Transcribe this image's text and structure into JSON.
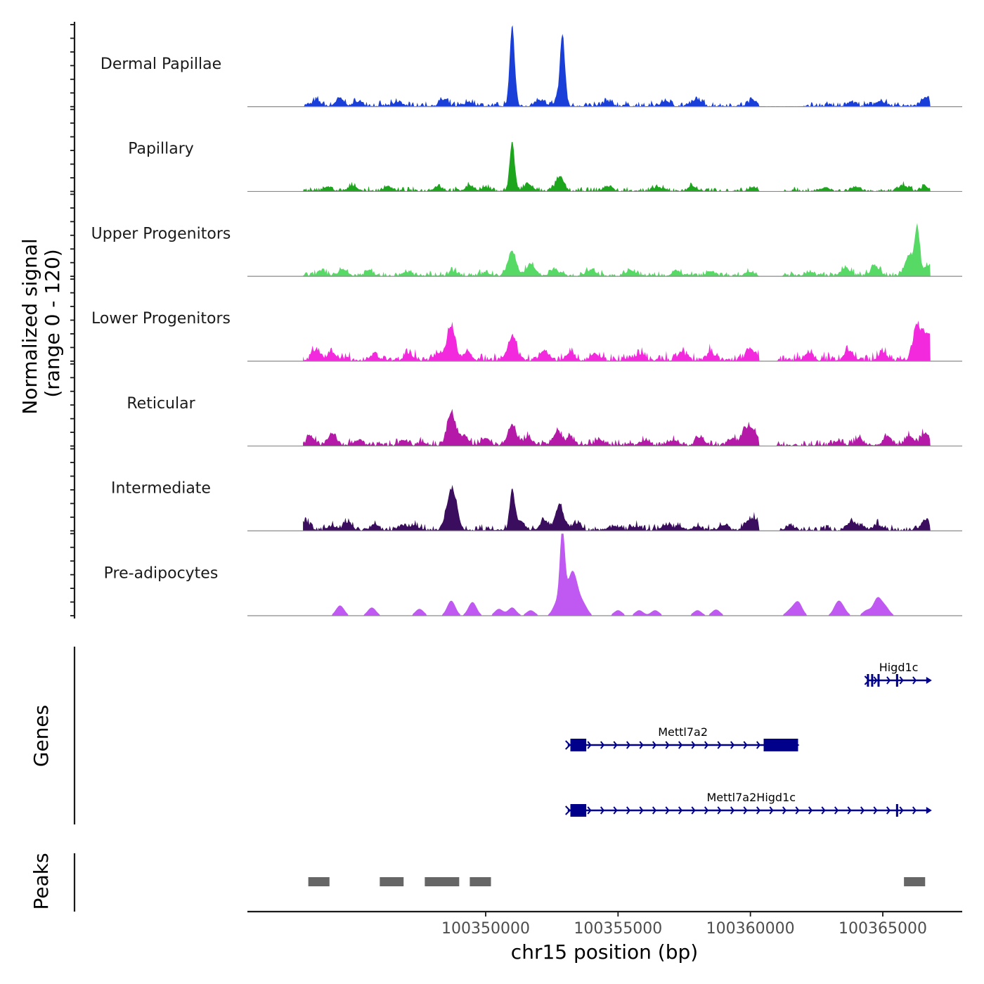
{
  "chart_data": {
    "type": "area",
    "title": "",
    "region": {
      "chromosome": "chr15",
      "start": 100341000,
      "end": 100368000
    },
    "coverage_panel": {
      "ylabel_line1": "Normalized signal",
      "ylabel_line2": "(range 0 - 120)",
      "ylim": [
        0,
        120
      ],
      "data_start": 100343100,
      "data_end": 100366800,
      "series": [
        {
          "name": "Dermal Papillae",
          "color": "#1a3fd9",
          "peaks": [
            [
              100343600,
              8
            ],
            [
              100344500,
              10
            ],
            [
              100345200,
              7
            ],
            [
              100346700,
              6
            ],
            [
              100348400,
              8
            ],
            [
              100349400,
              6
            ],
            [
              100351000,
              118
            ],
            [
              100352000,
              8
            ],
            [
              100352700,
              7
            ],
            [
              100352900,
              102
            ],
            [
              100354600,
              7
            ],
            [
              100356800,
              8
            ],
            [
              100358000,
              10
            ],
            [
              100360100,
              9
            ],
            [
              100363800,
              6
            ],
            [
              100364900,
              8
            ],
            [
              100366600,
              12
            ]
          ],
          "noise": 5,
          "gaps": [
            [
              100360300,
              100362000
            ]
          ]
        },
        {
          "name": "Papillary",
          "color": "#1ea51e",
          "peaks": [
            [
              100344000,
              6
            ],
            [
              100345000,
              8
            ],
            [
              100346300,
              7
            ],
            [
              100348200,
              7
            ],
            [
              100349400,
              8
            ],
            [
              100350000,
              5
            ],
            [
              100351000,
              72
            ],
            [
              100351600,
              10
            ],
            [
              100352800,
              20
            ],
            [
              100354600,
              7
            ],
            [
              100356500,
              6
            ],
            [
              100357800,
              7
            ],
            [
              100360100,
              6
            ],
            [
              100362800,
              5
            ],
            [
              100364000,
              6
            ],
            [
              100365800,
              8
            ],
            [
              100366600,
              6
            ]
          ],
          "noise": 4,
          "gaps": [
            [
              100360300,
              100361300
            ]
          ]
        },
        {
          "name": "Upper Progenitors",
          "color": "#57d965",
          "peaks": [
            [
              100343800,
              7
            ],
            [
              100344600,
              10
            ],
            [
              100345600,
              7
            ],
            [
              100347000,
              6
            ],
            [
              100348800,
              6
            ],
            [
              100350000,
              5
            ],
            [
              100351000,
              35
            ],
            [
              100351700,
              18
            ],
            [
              100352600,
              10
            ],
            [
              100354000,
              9
            ],
            [
              100355500,
              8
            ],
            [
              100357200,
              8
            ],
            [
              100358500,
              7
            ],
            [
              100360000,
              6
            ],
            [
              100362200,
              5
            ],
            [
              100363600,
              12
            ],
            [
              100364700,
              14
            ],
            [
              100366000,
              30
            ],
            [
              100366300,
              70
            ],
            [
              100366700,
              15
            ]
          ],
          "noise": 5,
          "gaps": [
            [
              100360300,
              100361200
            ]
          ]
        },
        {
          "name": "Lower Progenitors",
          "color": "#f229dd",
          "peaks": [
            [
              100343600,
              15
            ],
            [
              100344200,
              12
            ],
            [
              100345800,
              8
            ],
            [
              100347100,
              10
            ],
            [
              100348200,
              10
            ],
            [
              100348700,
              48
            ],
            [
              100349300,
              12
            ],
            [
              100351000,
              32
            ],
            [
              100352200,
              15
            ],
            [
              100353200,
              12
            ],
            [
              100354100,
              10
            ],
            [
              100355800,
              9
            ],
            [
              100357400,
              12
            ],
            [
              100358500,
              11
            ],
            [
              100360000,
              18
            ],
            [
              100362200,
              12
            ],
            [
              100363700,
              14
            ],
            [
              100365000,
              12
            ],
            [
              100366300,
              50
            ],
            [
              100366700,
              38
            ]
          ],
          "noise": 8,
          "gaps": [
            [
              100360300,
              100361000
            ]
          ]
        },
        {
          "name": "Reticular",
          "color": "#b519a8",
          "peaks": [
            [
              100343400,
              12
            ],
            [
              100344200,
              18
            ],
            [
              100345200,
              8
            ],
            [
              100346900,
              6
            ],
            [
              100347600,
              5
            ],
            [
              100348700,
              48
            ],
            [
              100349200,
              14
            ],
            [
              100350000,
              10
            ],
            [
              100351000,
              30
            ],
            [
              100351600,
              12
            ],
            [
              100352700,
              20
            ],
            [
              100353200,
              10
            ],
            [
              100354300,
              8
            ],
            [
              100356000,
              7
            ],
            [
              100357100,
              8
            ],
            [
              100358100,
              12
            ],
            [
              100359300,
              10
            ],
            [
              100359800,
              20
            ],
            [
              100360100,
              22
            ],
            [
              100363300,
              6
            ],
            [
              100364100,
              10
            ],
            [
              100365200,
              12
            ],
            [
              100366000,
              14
            ],
            [
              100366600,
              18
            ]
          ],
          "noise": 6,
          "gaps": [
            [
              100360300,
              100361000
            ]
          ]
        },
        {
          "name": "Intermediate",
          "color": "#3b0d5e",
          "peaks": [
            [
              100343200,
              12
            ],
            [
              100344200,
              6
            ],
            [
              100344800,
              12
            ],
            [
              100345800,
              8
            ],
            [
              100346800,
              6
            ],
            [
              100347300,
              8
            ],
            [
              100348600,
              30
            ],
            [
              100348800,
              42
            ],
            [
              100351000,
              60
            ],
            [
              100351300,
              14
            ],
            [
              100352200,
              14
            ],
            [
              100352800,
              35
            ],
            [
              100353400,
              10
            ],
            [
              100354900,
              6
            ],
            [
              100355700,
              6
            ],
            [
              100356800,
              8
            ],
            [
              100357300,
              6
            ],
            [
              100358000,
              6
            ],
            [
              100359000,
              8
            ],
            [
              100359900,
              12
            ],
            [
              100360200,
              14
            ],
            [
              100361500,
              7
            ],
            [
              100363800,
              12
            ],
            [
              100364200,
              6
            ],
            [
              100364800,
              8
            ],
            [
              100366600,
              15
            ]
          ],
          "noise": 6,
          "gaps": [
            [
              100360300,
              100361100
            ]
          ]
        },
        {
          "name": "Pre-adipocytes",
          "color": "#bf59f2",
          "peaks": [
            [
              100344500,
              15
            ],
            [
              100345700,
              12
            ],
            [
              100347500,
              10
            ],
            [
              100348700,
              22
            ],
            [
              100349500,
              20
            ],
            [
              100350500,
              10
            ],
            [
              100351000,
              12
            ],
            [
              100351700,
              8
            ],
            [
              100352700,
              20
            ],
            [
              100352900,
              118
            ],
            [
              100353200,
              45
            ],
            [
              100353400,
              35
            ],
            [
              100353700,
              15
            ],
            [
              100355000,
              8
            ],
            [
              100355800,
              8
            ],
            [
              100356400,
              8
            ],
            [
              100358000,
              8
            ],
            [
              100358700,
              9
            ],
            [
              100361500,
              8
            ],
            [
              100361800,
              20
            ],
            [
              100363300,
              18
            ],
            [
              100363500,
              8
            ],
            [
              100364400,
              8
            ],
            [
              100364800,
              25
            ],
            [
              100365100,
              12
            ]
          ],
          "noise": 0,
          "gaps": []
        }
      ]
    },
    "genes_panel": {
      "ylabel": "Genes",
      "genes": [
        {
          "name": "Higd1c",
          "row": 0,
          "start": 100364400,
          "end": 100366800,
          "strand": "+",
          "exons": [
            [
              100364400,
              100364480
            ],
            [
              100364560,
              100364600
            ],
            [
              100364800,
              100364850
            ],
            [
              100365500,
              100365580
            ]
          ]
        },
        {
          "name": "Mettl7a2",
          "row": 1,
          "start": 100353100,
          "end": 100361800,
          "strand": "+",
          "exons": [
            [
              100353200,
              100353800
            ],
            [
              100360500,
              100361800
            ]
          ]
        },
        {
          "name": "Mettl7a2Higd1c",
          "row": 2,
          "start": 100353100,
          "end": 100366800,
          "strand": "+",
          "exons": [
            [
              100353200,
              100353800
            ],
            [
              100365500,
              100365580
            ]
          ]
        }
      ]
    },
    "peaks_panel": {
      "ylabel": "Peaks",
      "peaks": [
        [
          100343300,
          100344100
        ],
        [
          100346000,
          100346900
        ],
        [
          100347700,
          100349000
        ],
        [
          100349400,
          100350200
        ],
        [
          100365800,
          100366600
        ]
      ]
    },
    "x_axis": {
      "label": "chr15 position (bp)",
      "ticks": [
        100350000,
        100355000,
        100360000,
        100365000
      ],
      "tick_labels": [
        "100350000",
        "100355000",
        "100360000",
        "100365000"
      ]
    }
  }
}
